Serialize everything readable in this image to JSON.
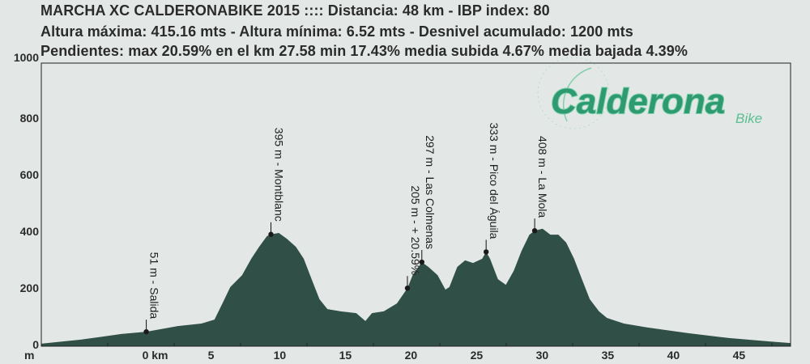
{
  "header": {
    "line1": "MARCHA XC CALDERONABIKE 2015 :::: Distancia: 48 km - IBP index: 80",
    "line2": "Altura máxima: 415.16 mts - Altura mínima: 6.52 mts - Desnivel acumulado: 1200 mts",
    "line3": "Pendientes: max 20.59% en el km 27.58 min 17.43% media subida 4.67% media bajada 4.39%"
  },
  "logo": {
    "main": "Calderona",
    "sub": "Bike"
  },
  "colors": {
    "fill": "#2f4f47",
    "background": "#e3e7e5",
    "logo": "#2e9a70",
    "logo_light": "#7fd0ad"
  },
  "chart_data": {
    "type": "area",
    "title": "",
    "xlabel": "km",
    "ylabel": "m",
    "xlim": [
      -8,
      49.1
    ],
    "ylim": [
      0,
      1000
    ],
    "yticks": [
      0,
      200,
      400,
      600,
      800,
      1000
    ],
    "xticks": [
      0,
      5,
      10,
      15,
      20,
      25,
      30,
      35,
      40,
      45
    ],
    "xtick_first_label": "0 km",
    "grid": false,
    "x": [
      -8.0,
      -5.0,
      -1.9,
      0,
      2.4,
      4.2,
      5.2,
      5.8,
      6.4,
      7.3,
      8.0,
      8.6,
      9.2,
      9.5,
      10.1,
      10.7,
      11.4,
      12.0,
      12.6,
      13.2,
      13.8,
      14.8,
      16.0,
      16.7,
      17.2,
      18.1,
      19.1,
      19.9,
      20.3,
      21.0,
      21.5,
      22.2,
      22.8,
      23.1,
      23.7,
      24.3,
      24.9,
      25.6,
      25.9,
      26.2,
      26.8,
      27.4,
      28.0,
      28.6,
      29.2,
      29.6,
      30.2,
      30.8,
      31.4,
      32.0,
      32.6,
      33.2,
      33.8,
      34.5,
      35.1,
      36.4,
      38.2,
      41.3,
      44.4,
      47.5,
      49.1
    ],
    "y": [
      9,
      23,
      43,
      51,
      71,
      80,
      94,
      151,
      209,
      251,
      309,
      351,
      389,
      395,
      400,
      380,
      351,
      309,
      237,
      166,
      131,
      123,
      117,
      89,
      117,
      123,
      151,
      205,
      251,
      297,
      280,
      251,
      200,
      209,
      280,
      303,
      294,
      309,
      333,
      309,
      237,
      217,
      266,
      337,
      394,
      408,
      415,
      394,
      394,
      366,
      309,
      237,
      166,
      123,
      100,
      80,
      66,
      46,
      29,
      17,
      11
    ],
    "annotations": [
      {
        "km": 0,
        "elev": 51,
        "text": "51 m - Salida"
      },
      {
        "km": 9.5,
        "elev": 395,
        "text": "395 m - Montblanc"
      },
      {
        "km": 19.9,
        "elev": 205,
        "text": "205 m - + 20.59%"
      },
      {
        "km": 21.0,
        "elev": 297,
        "text": "297 m - Las Colmenas"
      },
      {
        "km": 25.9,
        "elev": 333,
        "text": "333 m - Pico del Águila"
      },
      {
        "km": 29.6,
        "elev": 408,
        "text": "408 m - La Mola"
      }
    ]
  }
}
